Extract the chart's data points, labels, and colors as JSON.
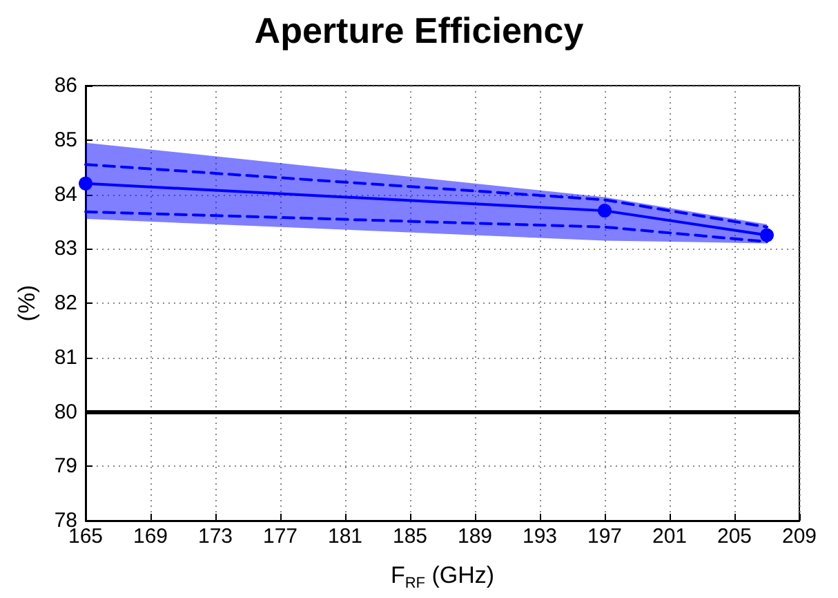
{
  "chart_data": {
    "type": "line",
    "title": "Aperture Efficiency",
    "xlabel": "F$_{RF}$ (GHz)",
    "ylabel": "(%)",
    "x": [
      165,
      197,
      207
    ],
    "series": [
      {
        "color": "#0000ff",
        "values": [
          84.2,
          83.7,
          83.25
        ],
        "lower": [
          83.55,
          83.15,
          83.1
        ],
        "upper": [
          84.95,
          83.95,
          83.45
        ],
        "marker": "circle",
        "line_style": "solid"
      },
      {
        "color": "#0000ff",
        "values": [
          84.55,
          83.9,
          83.4
        ],
        "marker": "none",
        "line_style": "dashed"
      },
      {
        "color": "#0000ff",
        "values": [
          83.68,
          83.4,
          83.13
        ],
        "marker": "none",
        "line_style": "dashed"
      }
    ],
    "xlim": [
      165,
      209
    ],
    "xticks": [
      165,
      169,
      173,
      177,
      181,
      185,
      189,
      193,
      197,
      201,
      205,
      209
    ],
    "ylim": [
      78,
      86
    ],
    "yticks": [
      78,
      79,
      80,
      81,
      82,
      83,
      84,
      85,
      86
    ],
    "ref_lines": [
      {
        "axis": "y",
        "value": 80,
        "color": "#000000",
        "line_style": "solid"
      }
    ],
    "grid": true
  }
}
